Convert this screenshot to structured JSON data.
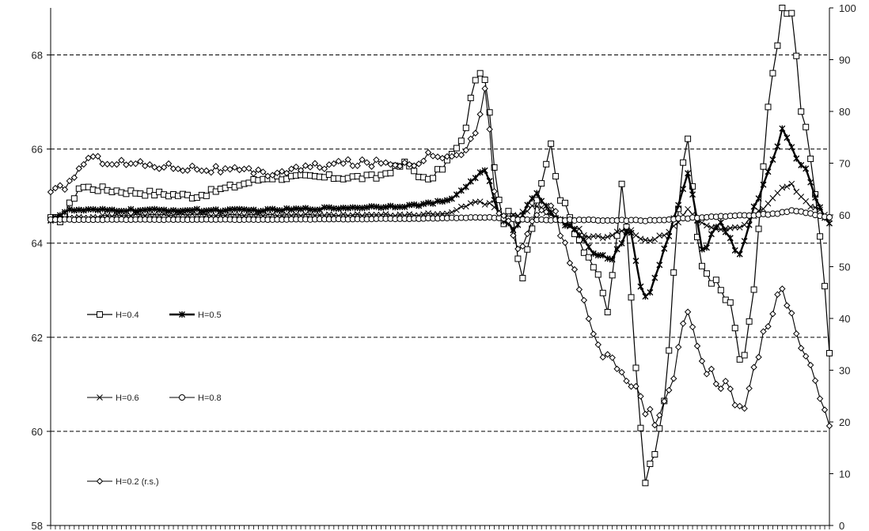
{
  "chart_data": {
    "type": "line",
    "title": "",
    "xlabel": "",
    "ylabel": "",
    "y_left": {
      "range": [
        58,
        69
      ],
      "ticks": [
        "58",
        "60",
        "62",
        "64",
        "66",
        "68"
      ]
    },
    "y_right": {
      "range": [
        0,
        100
      ],
      "ticks": [
        "0",
        "10",
        "20",
        "30",
        "40",
        "50",
        "60",
        "70",
        "80",
        "90",
        "100"
      ]
    },
    "gridlines": "dashed horizontal at every left-axis tick",
    "n_points": 166,
    "series": [
      {
        "name": "H=0.4",
        "axis": "left",
        "marker": "square",
        "keypoints": [
          [
            0,
            64.5
          ],
          [
            3,
            64.5
          ],
          [
            8,
            65.2
          ],
          [
            20,
            65.1
          ],
          [
            40,
            65.0
          ],
          [
            60,
            65.4
          ],
          [
            90,
            65.4
          ],
          [
            98,
            65.7
          ],
          [
            104,
            65.3
          ],
          [
            108,
            65.6
          ],
          [
            114,
            66.2
          ],
          [
            117,
            67.5
          ],
          [
            120,
            67.6
          ],
          [
            123,
            65.2
          ],
          [
            125,
            64.3
          ],
          [
            127,
            65.0
          ],
          [
            130,
            63.2
          ],
          [
            134,
            64.9
          ],
          [
            138,
            66.1
          ],
          [
            141,
            64.9
          ],
          [
            146,
            64.1
          ],
          [
            150,
            63.5
          ],
          [
            154,
            62.5
          ],
          [
            158,
            65.4
          ],
          [
            161,
            62.0
          ],
          [
            164,
            59.0
          ],
          [
            166,
            59.3
          ],
          [
            170,
            61.0
          ],
          [
            174,
            65.5
          ],
          [
            176,
            66.3
          ],
          [
            179,
            63.6
          ],
          [
            184,
            63.1
          ],
          [
            188,
            62.6
          ],
          [
            191,
            61.2
          ],
          [
            194,
            62.9
          ],
          [
            198,
            66.8
          ],
          [
            202,
            68.9
          ],
          [
            205,
            68.8
          ],
          [
            207,
            67.0
          ],
          [
            210,
            65.7
          ],
          [
            213,
            63.8
          ],
          [
            215,
            61.6
          ]
        ]
      },
      {
        "name": "H=0.5",
        "axis": "left",
        "marker": "star",
        "keypoints": [
          [
            0,
            64.5
          ],
          [
            5,
            64.7
          ],
          [
            20,
            64.7
          ],
          [
            40,
            64.7
          ],
          [
            60,
            64.7
          ],
          [
            100,
            64.8
          ],
          [
            110,
            64.9
          ],
          [
            116,
            65.3
          ],
          [
            120,
            65.6
          ],
          [
            124,
            64.5
          ],
          [
            128,
            64.3
          ],
          [
            134,
            65.1
          ],
          [
            140,
            64.5
          ],
          [
            146,
            64.2
          ],
          [
            150,
            63.8
          ],
          [
            155,
            63.6
          ],
          [
            160,
            64.4
          ],
          [
            163,
            63.0
          ],
          [
            165,
            62.8
          ],
          [
            170,
            64.0
          ],
          [
            176,
            65.5
          ],
          [
            180,
            63.8
          ],
          [
            185,
            64.5
          ],
          [
            190,
            63.7
          ],
          [
            194,
            64.7
          ],
          [
            198,
            65.5
          ],
          [
            202,
            66.4
          ],
          [
            206,
            65.8
          ],
          [
            209,
            65.5
          ],
          [
            212,
            64.8
          ],
          [
            215,
            64.4
          ]
        ]
      },
      {
        "name": "H=0.6",
        "axis": "left",
        "marker": "x",
        "keypoints": [
          [
            0,
            64.5
          ],
          [
            20,
            64.6
          ],
          [
            60,
            64.6
          ],
          [
            100,
            64.6
          ],
          [
            110,
            64.65
          ],
          [
            118,
            64.9
          ],
          [
            122,
            64.8
          ],
          [
            126,
            64.5
          ],
          [
            134,
            64.8
          ],
          [
            140,
            64.5
          ],
          [
            150,
            64.1
          ],
          [
            160,
            64.3
          ],
          [
            165,
            64.0
          ],
          [
            170,
            64.2
          ],
          [
            176,
            64.7
          ],
          [
            182,
            64.3
          ],
          [
            190,
            64.3
          ],
          [
            196,
            64.7
          ],
          [
            200,
            65.0
          ],
          [
            204,
            65.3
          ],
          [
            208,
            64.9
          ],
          [
            212,
            64.7
          ],
          [
            215,
            64.5
          ]
        ]
      },
      {
        "name": "H=0.8",
        "axis": "left",
        "marker": "circle",
        "keypoints": [
          [
            0,
            64.5
          ],
          [
            60,
            64.5
          ],
          [
            100,
            64.52
          ],
          [
            120,
            64.55
          ],
          [
            130,
            64.5
          ],
          [
            165,
            64.48
          ],
          [
            180,
            64.55
          ],
          [
            200,
            64.62
          ],
          [
            205,
            64.7
          ],
          [
            210,
            64.62
          ],
          [
            215,
            64.55
          ]
        ]
      },
      {
        "name": "H=0.2 (r.s.)",
        "axis": "right",
        "marker": "diamond",
        "keypoints": [
          [
            0,
            64
          ],
          [
            5,
            66
          ],
          [
            10,
            71
          ],
          [
            20,
            70
          ],
          [
            40,
            69
          ],
          [
            60,
            68
          ],
          [
            80,
            70
          ],
          [
            100,
            70
          ],
          [
            106,
            72
          ],
          [
            112,
            71
          ],
          [
            118,
            76
          ],
          [
            120,
            86
          ],
          [
            123,
            60
          ],
          [
            126,
            60
          ],
          [
            130,
            52
          ],
          [
            134,
            60
          ],
          [
            138,
            62
          ],
          [
            142,
            55
          ],
          [
            148,
            40
          ],
          [
            152,
            33
          ],
          [
            156,
            32
          ],
          [
            160,
            28
          ],
          [
            164,
            22
          ],
          [
            168,
            20
          ],
          [
            172,
            30
          ],
          [
            176,
            42
          ],
          [
            180,
            32
          ],
          [
            184,
            28
          ],
          [
            188,
            26
          ],
          [
            191,
            20
          ],
          [
            194,
            30
          ],
          [
            198,
            40
          ],
          [
            202,
            45
          ],
          [
            206,
            38
          ],
          [
            210,
            30
          ],
          [
            213,
            23
          ],
          [
            215,
            19
          ]
        ]
      }
    ],
    "legend": {
      "placement": "left-inside",
      "entries": [
        "H=0.4",
        "H=0.5",
        "H=0.6",
        "H=0.8",
        "H=0.2 (r.s.)"
      ]
    }
  }
}
